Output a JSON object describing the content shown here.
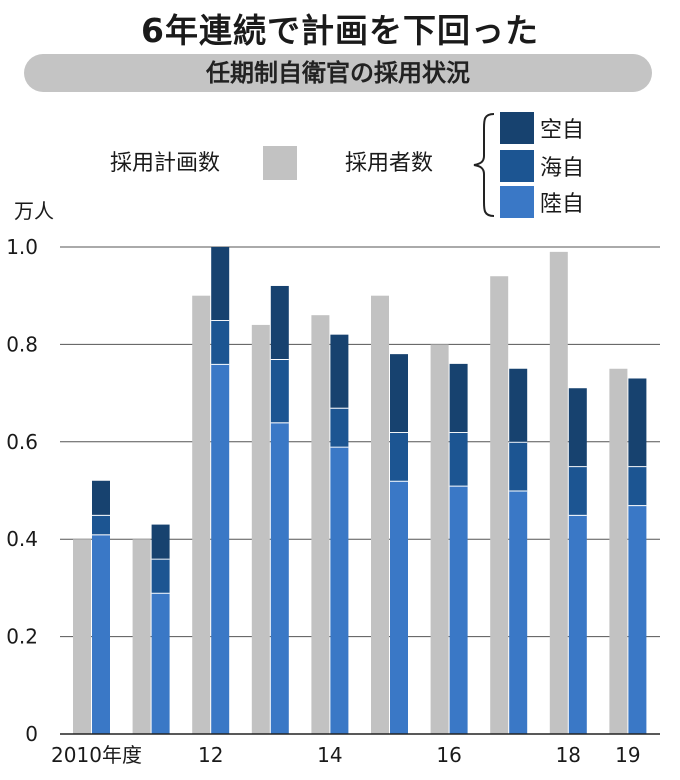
{
  "title": "6年連続で計画を下回った",
  "subtitle": "任期制自衛官の採用状況",
  "colors": {
    "plan": "#c2c2c2",
    "air": "#17426f",
    "sea": "#1c5592",
    "ground": "#3a78c6",
    "axis": "#222222"
  },
  "chart_data": {
    "type": "bar",
    "ylabel": "万人",
    "ylim": [
      0,
      1.0
    ],
    "yticks": [
      "0",
      "0.2",
      "0.4",
      "0.6",
      "0.8",
      "1.0"
    ],
    "x_tick_labels": [
      {
        "index": 0,
        "text": "2010年度"
      },
      {
        "index": 2,
        "text": "12"
      },
      {
        "index": 4,
        "text": "14"
      },
      {
        "index": 6,
        "text": "16"
      },
      {
        "index": 8,
        "text": "18"
      },
      {
        "index": 9,
        "text": "19"
      }
    ],
    "categories": [
      "2010",
      "2011",
      "2012",
      "2013",
      "2014",
      "2015",
      "2016",
      "2017",
      "2018",
      "2019"
    ],
    "plan": {
      "name": "採用計画数",
      "values": [
        0.4,
        0.4,
        0.9,
        0.84,
        0.86,
        0.9,
        0.8,
        0.94,
        0.99,
        0.75
      ]
    },
    "hired_group_label": "採用者数",
    "series": [
      {
        "name": "陸自",
        "key": "ground",
        "values": [
          0.41,
          0.29,
          0.76,
          0.64,
          0.59,
          0.52,
          0.51,
          0.5,
          0.45,
          0.47
        ]
      },
      {
        "name": "海自",
        "key": "sea",
        "values": [
          0.04,
          0.07,
          0.09,
          0.13,
          0.08,
          0.1,
          0.11,
          0.1,
          0.1,
          0.08
        ]
      },
      {
        "name": "空自",
        "key": "air",
        "values": [
          0.07,
          0.07,
          0.15,
          0.15,
          0.15,
          0.16,
          0.14,
          0.15,
          0.16,
          0.18
        ]
      }
    ]
  }
}
